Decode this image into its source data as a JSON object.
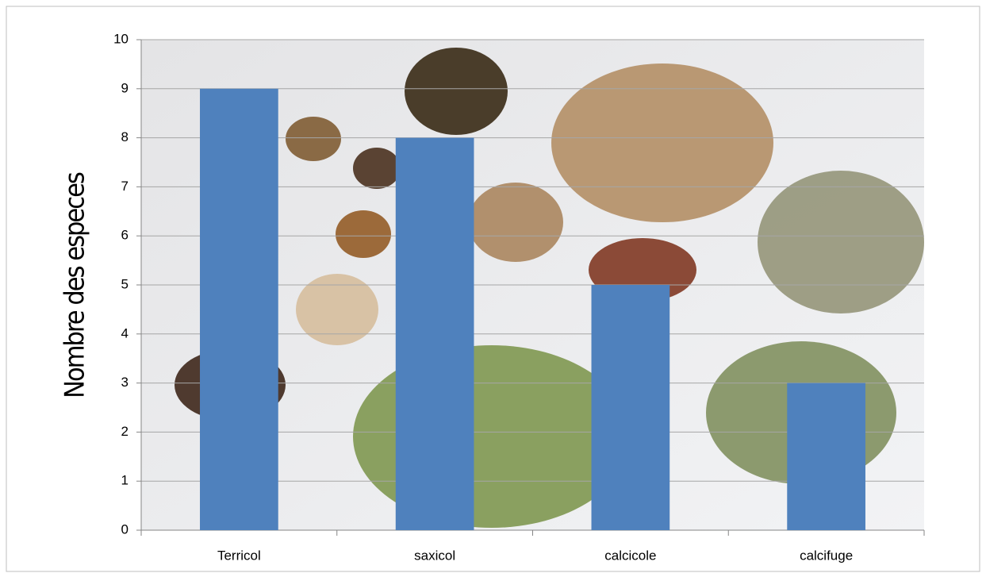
{
  "chart_data": {
    "type": "bar",
    "y_label": "Nombre des especes",
    "categories": [
      "Terricol",
      "saxicol",
      "calcicole",
      "calcifuge"
    ],
    "values": [
      9,
      8,
      5,
      3
    ],
    "color": "#4f81bd",
    "ylim": [
      0,
      10
    ],
    "yticks": [
      0,
      1,
      2,
      3,
      4,
      5,
      6,
      7,
      8,
      9,
      10
    ],
    "grid": true
  }
}
